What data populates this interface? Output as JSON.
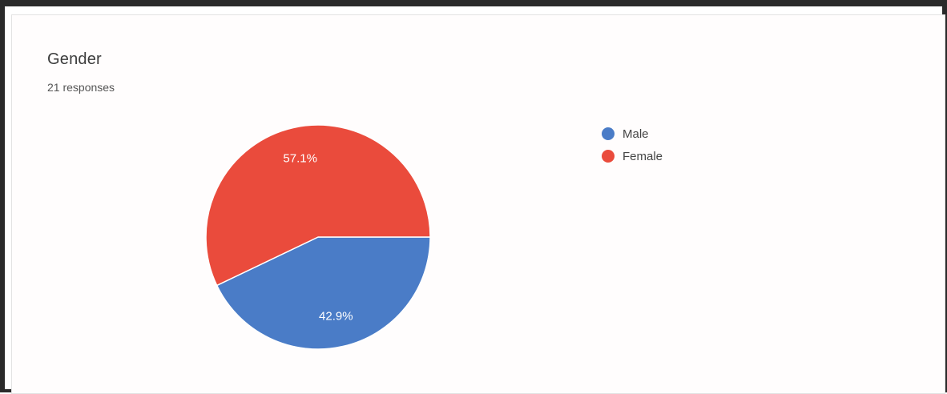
{
  "card": {
    "title": "Gender",
    "subtitle": "21 responses"
  },
  "chart_data": {
    "type": "pie",
    "title": "Gender",
    "subtitle": "21 responses",
    "legend_position": "right",
    "slices": [
      {
        "label": "Male",
        "value": 42.9,
        "display": "42.9%",
        "color": "#4a7cc7"
      },
      {
        "label": "Female",
        "value": 57.1,
        "display": "57.1%",
        "color": "#ea4b3c"
      }
    ]
  }
}
